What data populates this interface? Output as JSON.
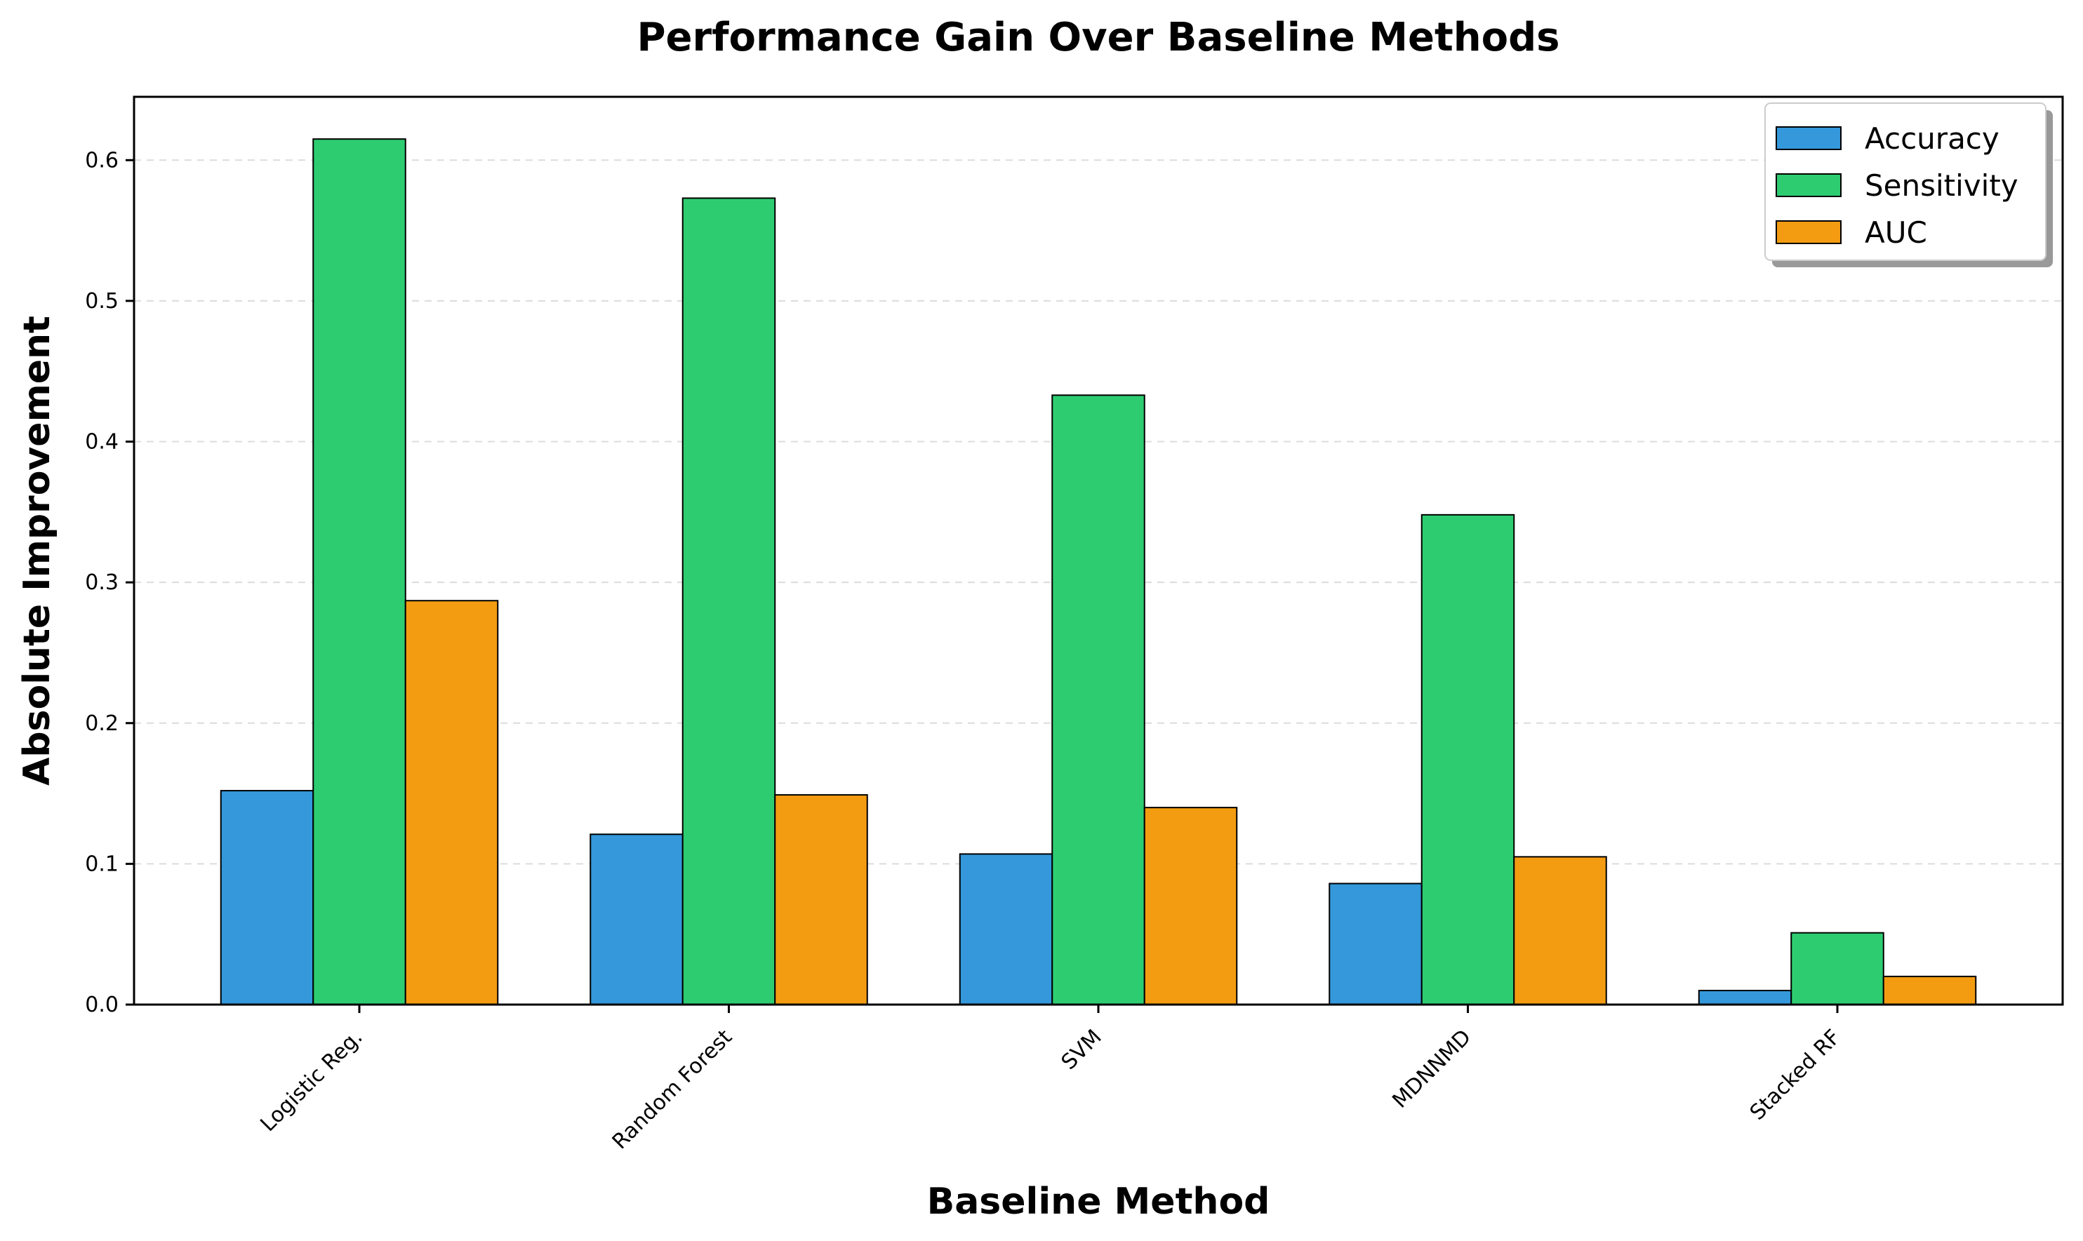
{
  "chart_data": {
    "type": "bar",
    "title": "Performance Gain Over Baseline Methods",
    "xlabel": "Baseline Method",
    "ylabel": "Absolute Improvement",
    "categories": [
      "Logistic Reg.",
      "Random Forest",
      "SVM",
      "MDNNMD",
      "Stacked RF"
    ],
    "series": [
      {
        "name": "Accuracy",
        "color": "#3498db",
        "values": [
          0.152,
          0.121,
          0.107,
          0.086,
          0.01
        ]
      },
      {
        "name": "Sensitivity",
        "color": "#2ecc71",
        "values": [
          0.615,
          0.573,
          0.433,
          0.348,
          0.051
        ]
      },
      {
        "name": "AUC",
        "color": "#f39c12",
        "values": [
          0.287,
          0.149,
          0.14,
          0.105,
          0.02
        ]
      }
    ],
    "ylim": [
      0,
      0.645
    ],
    "yticks": [
      "0.0",
      "0.1",
      "0.2",
      "0.3",
      "0.4",
      "0.5",
      "0.6"
    ],
    "grid": "y-dashed",
    "legend": "top-right"
  }
}
